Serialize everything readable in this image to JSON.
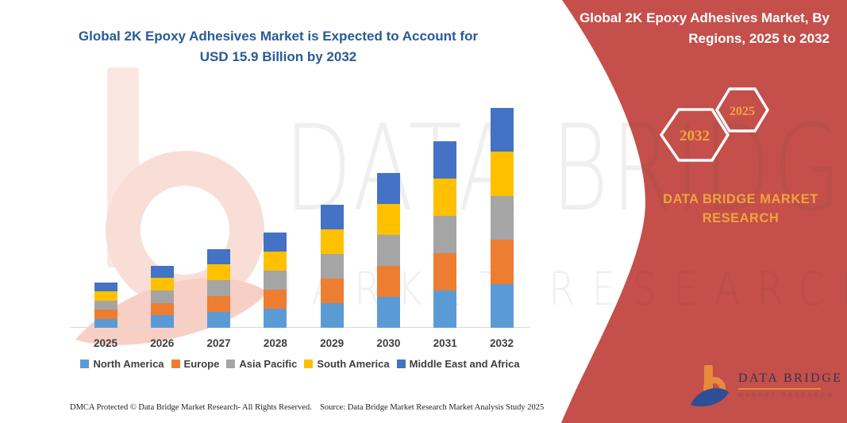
{
  "header": {
    "title_line1": "Global 2K Epoxy Adhesives Market is Expected to Account for",
    "title_line2": "USD 15.9 Billion by 2032"
  },
  "panel": {
    "title": "Global 2K Epoxy Adhesives Market, By Regions, 2025 to 2032",
    "hexagon_back_label": "2032",
    "hexagon_front_label": "2025",
    "brand_line1": "DATA BRIDGE MARKET",
    "brand_line2": "RESEARCH"
  },
  "watermark": {
    "line1": "DATA BRIDGE",
    "line2": "MARKET RESEARCH"
  },
  "logo": {
    "name": "DATA BRIDGE",
    "tagline": "MARKET RESEARCH"
  },
  "footer": {
    "left": "DMCA Protected © Data Bridge Market Research-  All Rights Reserved.",
    "right": "Source: Data Bridge Market Research  Market Analysis Study 2025"
  },
  "colors": {
    "panel_red": "#C54F4A",
    "title_blue": "#2A5A94",
    "gold": "#F0A43C",
    "axis_gray": "#D9D9D9",
    "label_gray": "#3F3F3F"
  },
  "chart_data": {
    "type": "bar",
    "stacked": true,
    "title": "Global 2K Epoxy Adhesives Market is Expected to Account for USD 15.9 Billion by 2032",
    "unit": "USD Billion",
    "categories": [
      "2025",
      "2026",
      "2027",
      "2028",
      "2029",
      "2030",
      "2031",
      "2032"
    ],
    "series": [
      {
        "name": "North America",
        "color": "#5B9BD5",
        "values": [
          0.66,
          0.9,
          1.14,
          1.38,
          1.78,
          2.24,
          2.7,
          3.18
        ]
      },
      {
        "name": "Europe",
        "color": "#ED7D31",
        "values": [
          0.66,
          0.9,
          1.14,
          1.38,
          1.78,
          2.24,
          2.7,
          3.18
        ]
      },
      {
        "name": "Asia Pacific",
        "color": "#A5A5A5",
        "values": [
          0.66,
          0.9,
          1.14,
          1.38,
          1.78,
          2.24,
          2.7,
          3.18
        ]
      },
      {
        "name": "South America",
        "color": "#FFC000",
        "values": [
          0.66,
          0.9,
          1.14,
          1.38,
          1.78,
          2.24,
          2.7,
          3.18
        ]
      },
      {
        "name": "Middle East and Africa",
        "color": "#4472C4",
        "values": [
          0.66,
          0.9,
          1.14,
          1.38,
          1.78,
          2.24,
          2.7,
          3.18
        ]
      }
    ],
    "totals": [
      3.3,
      4.5,
      5.7,
      6.9,
      8.9,
      11.2,
      13.5,
      15.9
    ],
    "ylim": [
      0,
      16
    ],
    "gridlines": false,
    "y_axis_visible": false,
    "legend_position": "bottom",
    "values_estimated": true
  }
}
